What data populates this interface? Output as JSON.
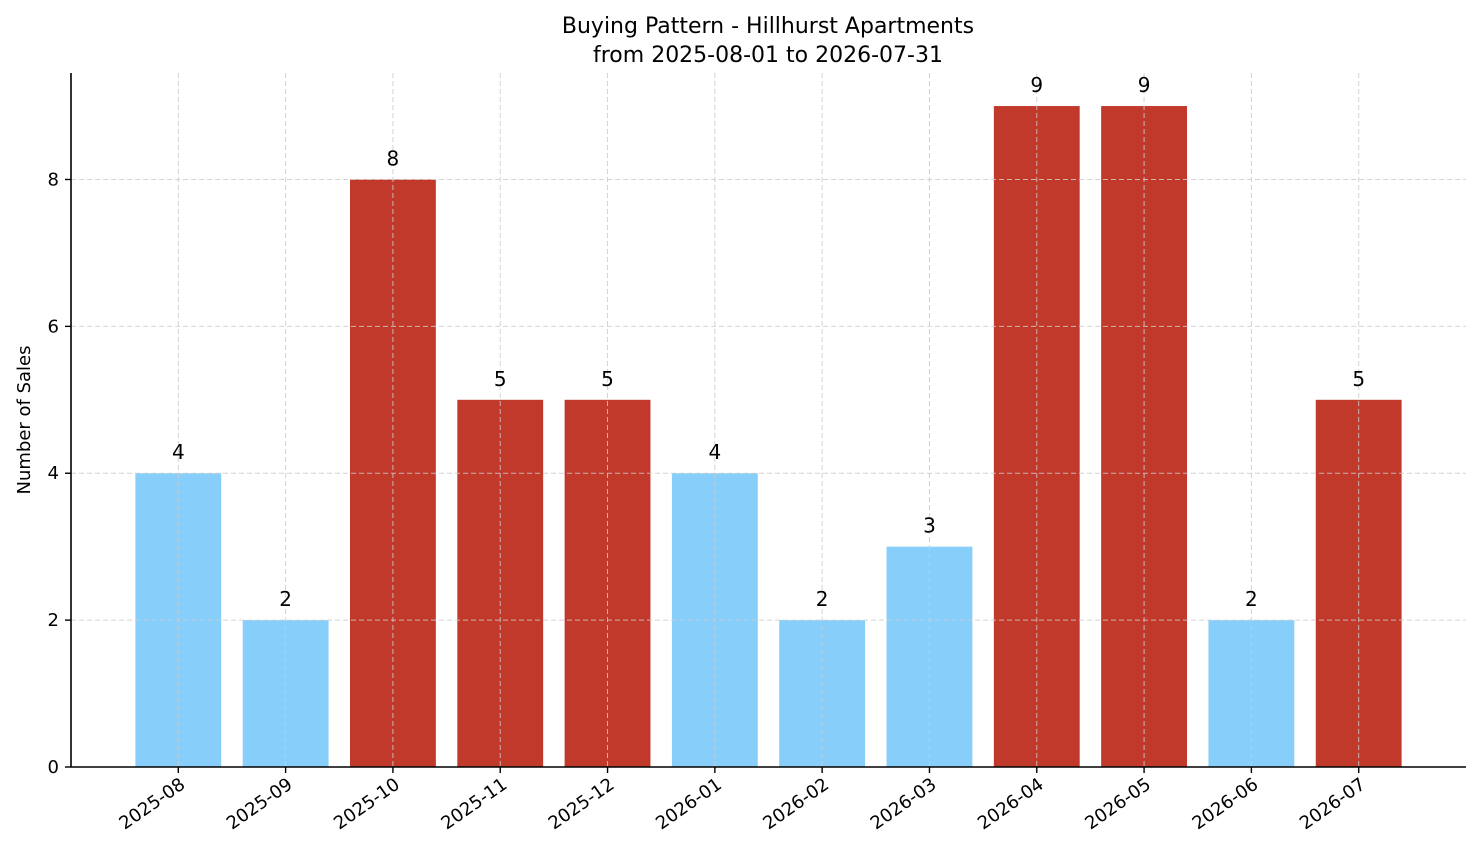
{
  "chart_data": {
    "type": "bar",
    "title": "Buying Pattern - Hillhurst Apartments",
    "subtitle": "from 2025-08-01 to 2026-07-31",
    "xlabel": "",
    "ylabel": "Number of Sales",
    "categories": [
      "2025-08",
      "2025-09",
      "2025-10",
      "2025-11",
      "2025-12",
      "2026-01",
      "2026-02",
      "2026-03",
      "2026-04",
      "2026-05",
      "2026-06",
      "2026-07"
    ],
    "values": [
      4,
      2,
      8,
      5,
      5,
      4,
      2,
      3,
      9,
      9,
      2,
      5
    ],
    "bar_colors": [
      "#87cefa",
      "#87cefa",
      "#c0392b",
      "#c0392b",
      "#c0392b",
      "#87cefa",
      "#87cefa",
      "#87cefa",
      "#c0392b",
      "#c0392b",
      "#87cefa",
      "#c0392b"
    ],
    "data_labels": [
      "4",
      "2",
      "8",
      "5",
      "5",
      "4",
      "2",
      "3",
      "9",
      "9",
      "2",
      "5"
    ],
    "ylim": [
      0,
      9.45
    ],
    "yticks": [
      0,
      2,
      4,
      6,
      8
    ],
    "ytick_labels": [
      "0",
      "2",
      "4",
      "6",
      "8"
    ],
    "grid": true,
    "x_tick_rotation_deg": 35
  }
}
